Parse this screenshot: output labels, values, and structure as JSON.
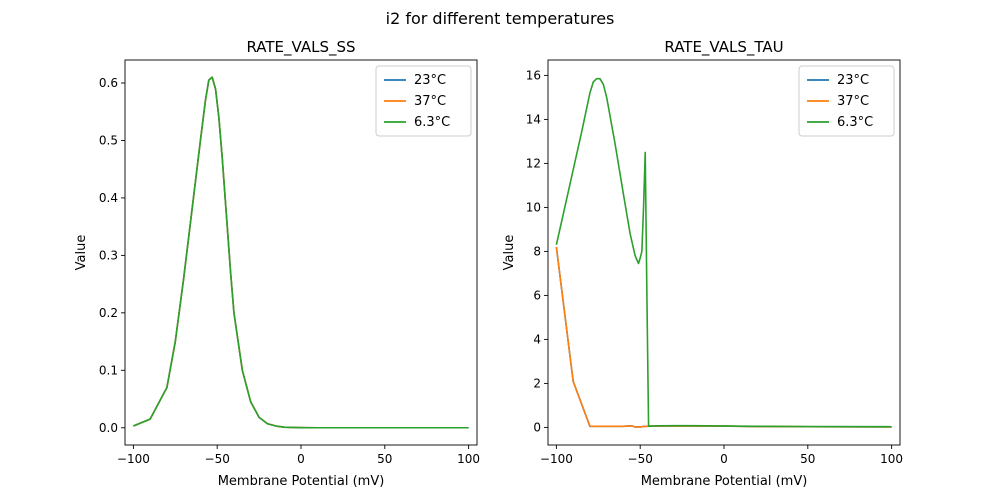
{
  "suptitle": "i2 for different temperatures",
  "chart_data": [
    {
      "type": "line",
      "title": "RATE_VALS_SS",
      "xlabel": "Membrane Potential (mV)",
      "ylabel": "Value",
      "xlim": [
        -105,
        105
      ],
      "ylim": [
        -0.03,
        0.64
      ],
      "xticks": [
        -100,
        -50,
        0,
        50,
        100
      ],
      "xtick_labels": [
        "−100",
        "−50",
        "0",
        "50",
        "100"
      ],
      "yticks": [
        0.0,
        0.1,
        0.2,
        0.3,
        0.4,
        0.5,
        0.6
      ],
      "ytick_labels": [
        "0.0",
        "0.1",
        "0.2",
        "0.3",
        "0.4",
        "0.5",
        "0.6"
      ],
      "legend": "top-right",
      "grid": false,
      "series": [
        {
          "name": "23°C",
          "color": "#1f77b4",
          "x": [
            -100,
            -90,
            -80,
            -75,
            -70,
            -65,
            -60,
            -57,
            -55,
            -53,
            -51,
            -49,
            -47,
            -45,
            -42,
            -40,
            -35,
            -30,
            -25,
            -20,
            -15,
            -10,
            -5,
            0,
            10,
            20,
            50,
            100
          ],
          "y": [
            0.003,
            0.015,
            0.07,
            0.15,
            0.26,
            0.38,
            0.5,
            0.57,
            0.605,
            0.61,
            0.59,
            0.54,
            0.47,
            0.39,
            0.27,
            0.2,
            0.1,
            0.045,
            0.018,
            0.007,
            0.003,
            0.001,
            0.0005,
            0.0002,
            0,
            0,
            0,
            0
          ]
        },
        {
          "name": "37°C",
          "color": "#ff7f0e",
          "x": [
            -100,
            -90,
            -80,
            -75,
            -70,
            -65,
            -60,
            -57,
            -55,
            -53,
            -51,
            -49,
            -47,
            -45,
            -42,
            -40,
            -35,
            -30,
            -25,
            -20,
            -15,
            -10,
            -5,
            0,
            10,
            20,
            50,
            100
          ],
          "y": [
            0.003,
            0.015,
            0.07,
            0.15,
            0.26,
            0.38,
            0.5,
            0.57,
            0.605,
            0.61,
            0.59,
            0.54,
            0.47,
            0.39,
            0.27,
            0.2,
            0.1,
            0.045,
            0.018,
            0.007,
            0.003,
            0.001,
            0.0005,
            0.0002,
            0,
            0,
            0,
            0
          ]
        },
        {
          "name": "6.3°C",
          "color": "#2ca02c",
          "x": [
            -100,
            -90,
            -80,
            -75,
            -70,
            -65,
            -60,
            -57,
            -55,
            -53,
            -51,
            -49,
            -47,
            -45,
            -42,
            -40,
            -35,
            -30,
            -25,
            -20,
            -15,
            -10,
            -5,
            0,
            10,
            20,
            50,
            100
          ],
          "y": [
            0.003,
            0.015,
            0.07,
            0.15,
            0.26,
            0.38,
            0.5,
            0.57,
            0.605,
            0.61,
            0.59,
            0.54,
            0.47,
            0.39,
            0.27,
            0.2,
            0.1,
            0.045,
            0.018,
            0.007,
            0.003,
            0.001,
            0.0005,
            0.0002,
            0,
            0,
            0,
            0
          ]
        }
      ]
    },
    {
      "type": "line",
      "title": "RATE_VALS_TAU",
      "xlabel": "Membrane Potential (mV)",
      "ylabel": "Value",
      "xlim": [
        -105,
        105
      ],
      "ylim": [
        -0.8,
        16.7
      ],
      "xticks": [
        -100,
        -50,
        0,
        50,
        100
      ],
      "xtick_labels": [
        "−100",
        "−50",
        "0",
        "50",
        "100"
      ],
      "yticks": [
        0,
        2,
        4,
        6,
        8,
        10,
        12,
        14,
        16
      ],
      "ytick_labels": [
        "0",
        "2",
        "4",
        "6",
        "8",
        "10",
        "12",
        "14",
        "16"
      ],
      "legend": "top-right",
      "grid": false,
      "series": [
        {
          "name": "23°C",
          "color": "#1f77b4",
          "x": [
            -100,
            -90,
            -80,
            -70,
            -60,
            -55,
            -53,
            -50,
            -47,
            -46,
            -45,
            -40,
            -20,
            0,
            20,
            50,
            100
          ],
          "y": [
            8.2,
            2.1,
            0.05,
            0.05,
            0.05,
            0.07,
            0.02,
            0.02,
            0.05,
            0.05,
            0.06,
            0.06,
            0.06,
            0.06,
            0.04,
            0.03,
            0.02
          ]
        },
        {
          "name": "37°C",
          "color": "#ff7f0e",
          "x": [
            -100,
            -90,
            -80,
            -70,
            -60,
            -55,
            -53,
            -50,
            -47,
            -46,
            -45,
            -40,
            -20,
            0,
            20,
            50,
            100
          ],
          "y": [
            8.2,
            2.1,
            0.05,
            0.05,
            0.05,
            0.07,
            0.02,
            0.02,
            0.05,
            0.05,
            0.06,
            0.06,
            0.06,
            0.06,
            0.04,
            0.03,
            0.02
          ]
        },
        {
          "name": "6.3°C",
          "color": "#2ca02c",
          "x": [
            -100,
            -95,
            -90,
            -85,
            -80,
            -78,
            -76,
            -74,
            -72,
            -70,
            -65,
            -60,
            -56,
            -53,
            -51,
            -50,
            -49,
            -48,
            -47,
            -46,
            -45,
            -40,
            -30,
            -20,
            -10,
            0,
            20,
            50,
            100
          ],
          "y": [
            8.3,
            10.0,
            11.7,
            13.4,
            15.2,
            15.7,
            15.85,
            15.85,
            15.6,
            15.0,
            12.9,
            10.6,
            8.8,
            7.8,
            7.45,
            7.7,
            8.0,
            10.0,
            12.5,
            6.0,
            0.05,
            0.07,
            0.08,
            0.08,
            0.07,
            0.06,
            0.05,
            0.04,
            0.03
          ]
        }
      ]
    }
  ]
}
